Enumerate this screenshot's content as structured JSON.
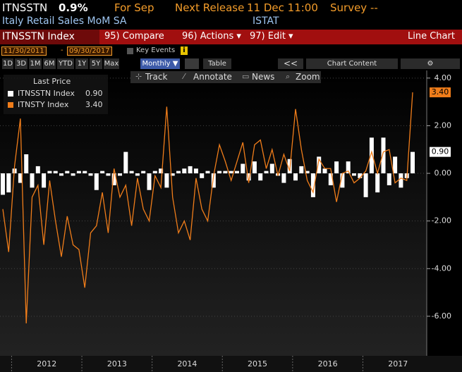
{
  "header": {
    "ticker": "ITNSSTN",
    "change": "0.9%",
    "period": "For Sep",
    "release_label": "Next Release",
    "release_time": "11 Dec 11:00",
    "survey": "Survey --",
    "description": "Italy Retail Sales MoM SA",
    "source": "ISTAT"
  },
  "toolbar": {
    "security": "ITNSSTN Index",
    "compare": "95) Compare",
    "actions": "96) Actions ▾",
    "edit": "97) Edit ▾",
    "view": "Line Chart"
  },
  "range": {
    "start": "11/30/2011",
    "dash": "-",
    "end": "09/30/2017",
    "key_events": "Key Events",
    "info": "i"
  },
  "periods": [
    "1D",
    "3D",
    "1M",
    "6M",
    "YTD",
    "1Y",
    "5Y",
    "Max"
  ],
  "frequency": "Monthly ▼",
  "table": "Table",
  "collapse": "<<",
  "chart_content": "Chart Content",
  "tools": [
    "Track",
    "Annotate",
    "News",
    "Zoom"
  ],
  "chart_data": {
    "type": "bar-line",
    "legend_title": "Last Price",
    "categories": [
      null,
      null,
      null,
      null,
      null,
      null,
      null,
      null,
      null,
      null,
      null,
      null,
      null,
      null,
      null,
      null,
      null,
      null,
      null,
      null,
      null,
      null,
      null,
      null,
      null,
      null,
      null,
      null,
      null,
      null,
      null,
      null,
      null,
      null,
      null,
      null,
      null,
      null,
      null,
      null,
      null,
      null,
      null,
      null,
      null,
      null,
      null,
      null,
      null,
      null,
      null,
      null,
      null,
      null,
      null,
      null,
      null,
      null,
      null,
      null,
      null,
      null,
      null,
      null,
      null,
      null,
      null,
      null,
      null,
      null,
      null
    ],
    "x_labels": [
      "2012",
      "2013",
      "2014",
      "2015",
      "2016",
      "2017"
    ],
    "series": [
      {
        "name": "ITNSSTN Index",
        "kind": "bar",
        "color": "#ffffff",
        "last_label": "0.90",
        "values": [
          -0.9,
          -0.8,
          0.2,
          -0.4,
          0.8,
          -0.6,
          0.3,
          -0.6,
          0.1,
          0.1,
          -0.1,
          0.1,
          -0.1,
          0.1,
          0.1,
          -0.1,
          -0.7,
          0.1,
          -0.1,
          -0.5,
          -0.1,
          0.9,
          0.1,
          -0.1,
          0.1,
          -0.7,
          0.1,
          0.2,
          -0.6,
          -0.1,
          0.1,
          0.2,
          0.3,
          0.2,
          -0.2,
          0.1,
          -0.6,
          0.1,
          0.1,
          0.1,
          0.1,
          0.4,
          -0.3,
          0.5,
          -0.3,
          0.1,
          0.4,
          -0.1,
          -0.4,
          0.6,
          -0.3,
          0.3,
          0.1,
          -1.0,
          0.7,
          0.2,
          -0.5,
          0.5,
          -0.6,
          0.5,
          -0.1,
          -0.2,
          -1.0,
          1.5,
          -0.8,
          1.5,
          -0.5,
          0.7,
          -0.6,
          -0.2,
          0.9
        ]
      },
      {
        "name": "ITNSTY Index",
        "kind": "line",
        "color": "#f07d1a",
        "last_label": "3.40",
        "values": [
          -1.5,
          -3.3,
          0.3,
          2.3,
          -6.3,
          -1.0,
          -0.5,
          -3.0,
          -0.3,
          -2.0,
          -3.5,
          -1.8,
          -3.0,
          -3.2,
          -4.8,
          -2.5,
          -2.2,
          -0.8,
          -2.5,
          0.2,
          -1.0,
          -0.5,
          -2.2,
          -0.2,
          -1.5,
          -2.0,
          -0.1,
          -0.6,
          2.8,
          -1.0,
          -2.5,
          -2.0,
          -2.8,
          -0.2,
          -1.5,
          -2.0,
          -0.1,
          1.2,
          0.5,
          -0.3,
          0.5,
          1.3,
          -0.4,
          1.2,
          1.4,
          0.2,
          1.0,
          -0.1,
          0.8,
          0.1,
          2.7,
          1.0,
          -0.3,
          -0.8,
          0.6,
          0.2,
          0.2,
          -1.2,
          0.0,
          0.1,
          -0.4,
          -0.2,
          0.1,
          0.9,
          0.0,
          0.9,
          1.0,
          -0.4,
          -0.2,
          -0.3,
          3.4
        ]
      }
    ],
    "ylim": [
      -7.66,
      4.32
    ],
    "yticks": [
      {
        "value": 4,
        "label": "4.00"
      },
      {
        "value": 2,
        "label": "2.00"
      },
      {
        "value": 0,
        "label": "0.00"
      },
      {
        "value": -2,
        "label": "-2.00"
      },
      {
        "value": -4,
        "label": "-4.00"
      },
      {
        "value": -6,
        "label": "-6.00"
      }
    ],
    "grid": true
  }
}
